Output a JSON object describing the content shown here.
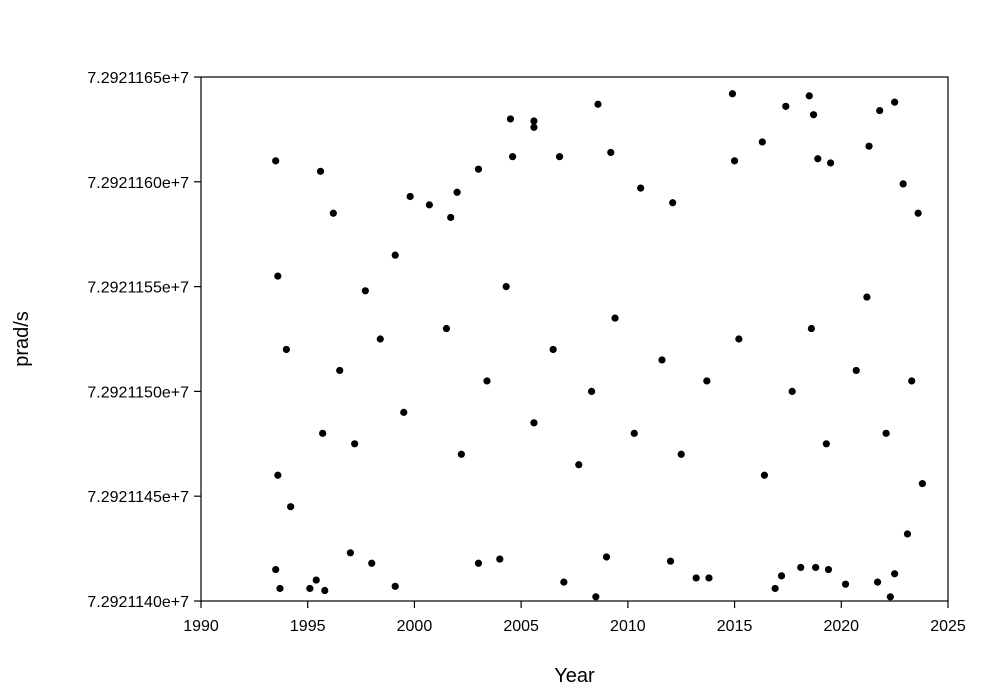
{
  "chart_data": {
    "type": "scatter",
    "title": "",
    "xlabel": "Year",
    "ylabel": "prad/s",
    "xlim": [
      1990,
      2025
    ],
    "ylim": [
      72921140,
      72921165
    ],
    "x_ticks": [
      1990,
      1995,
      2000,
      2005,
      2010,
      2015,
      2020,
      2025
    ],
    "x_tick_labels": [
      "1990",
      "1995",
      "2000",
      "2005",
      "2010",
      "2015",
      "2020",
      "2025"
    ],
    "y_ticks": [
      72921140,
      72921145,
      72921150,
      72921155,
      72921160,
      72921165
    ],
    "y_tick_labels": [
      "7.2921140e+7",
      "7.2921145e+7",
      "7.2921150e+7",
      "7.2921155e+7",
      "7.2921160e+7",
      "7.2921165e+7"
    ],
    "grid": false,
    "legend": "none",
    "marker_color": "#000000",
    "series": [
      {
        "x": [
          1993.5,
          1993.6,
          1995.6,
          1996.2,
          1997.7,
          1999.1,
          1999.8,
          2000.7,
          2001.7,
          2002.0,
          2003.0,
          2004.5,
          2004.6,
          2005.6,
          2005.6,
          2006.8,
          2008.6,
          2009.2,
          2010.6,
          2012.1,
          2014.9,
          2015.0,
          2016.3,
          2017.4,
          2018.5,
          2018.7,
          2018.9,
          2019.5,
          2021.3,
          2021.8,
          2022.5,
          2022.9,
          2023.6,
          1993.5,
          1993.7,
          1995.1,
          1995.4,
          1995.8,
          1997.0,
          1998.0,
          1999.1,
          2003.0,
          2004.0,
          2007.0,
          2008.5,
          2009.0,
          2012.0,
          2013.2,
          2013.8,
          2016.9,
          2017.2,
          2018.1,
          2018.8,
          2019.4,
          2020.2,
          2021.7,
          2022.3,
          2022.5,
          2023.1,
          2023.8,
          1993.6,
          1994.0,
          1994.2,
          1995.7,
          1996.5,
          1997.2,
          1998.4,
          1999.5,
          2001.5,
          2002.2,
          2003.4,
          2004.3,
          2005.6,
          2006.5,
          2007.7,
          2008.3,
          2009.4,
          2010.3,
          2011.6,
          2012.5,
          2013.7,
          2015.2,
          2016.4,
          2017.7,
          2018.6,
          2019.3,
          2020.7,
          2021.2,
          2022.1,
          2023.3
        ],
        "y": [
          72921161.0,
          72921155.5,
          72921160.5,
          72921158.5,
          72921154.8,
          72921156.5,
          72921159.3,
          72921158.9,
          72921158.3,
          72921159.5,
          72921160.6,
          72921163.0,
          72921161.2,
          72921162.9,
          72921162.6,
          72921161.2,
          72921163.7,
          72921161.4,
          72921159.7,
          72921159.0,
          72921164.2,
          72921161.0,
          72921161.9,
          72921163.6,
          72921164.1,
          72921163.2,
          72921161.1,
          72921160.9,
          72921161.7,
          72921163.4,
          72921163.8,
          72921159.9,
          72921158.5,
          72921141.5,
          72921140.6,
          72921140.6,
          72921141.0,
          72921140.5,
          72921142.3,
          72921141.8,
          72921140.7,
          72921141.8,
          72921142.0,
          72921140.9,
          72921140.2,
          72921142.1,
          72921141.9,
          72921141.1,
          72921141.1,
          72921140.6,
          72921141.2,
          72921141.6,
          72921141.6,
          72921141.5,
          72921140.8,
          72921140.9,
          72921140.2,
          72921141.3,
          72921143.2,
          72921145.6,
          72921146.0,
          72921152.0,
          72921144.5,
          72921148.0,
          72921151.0,
          72921147.5,
          72921152.5,
          72921149.0,
          72921153.0,
          72921147.0,
          72921150.5,
          72921155.0,
          72921148.5,
          72921152.0,
          72921146.5,
          72921150.0,
          72921153.5,
          72921148.0,
          72921151.5,
          72921147.0,
          72921150.5,
          72921152.5,
          72921146.0,
          72921150.0,
          72921153.0,
          72921147.5,
          72921151.0,
          72921154.5,
          72921148.0,
          72921150.5
        ]
      }
    ]
  }
}
